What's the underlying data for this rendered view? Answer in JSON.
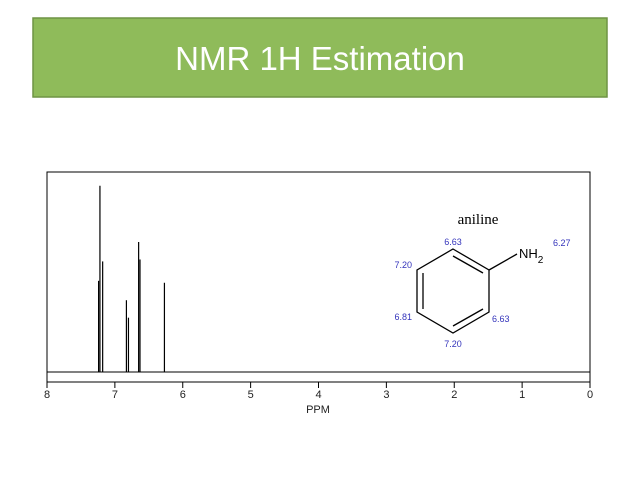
{
  "title": "NMR 1H Estimation",
  "chart_data": {
    "type": "spectrum",
    "xlabel": "PPM",
    "x": [
      7.24,
      7.22,
      7.18,
      6.83,
      6.8,
      6.65,
      6.63,
      6.27
    ],
    "values": [
      47,
      96,
      57,
      37,
      28,
      67,
      58,
      46
    ],
    "xlim": [
      8,
      0
    ],
    "xticks": [
      8,
      7,
      6,
      5,
      4,
      3,
      2,
      1,
      0
    ],
    "ylim": [
      0,
      100
    ],
    "color": "#000000"
  },
  "molecule": {
    "name": "aniline",
    "group": "NH",
    "subscript": "2",
    "shifts": [
      "6.63",
      "7.20",
      "6.81",
      "7.20",
      "6.63",
      "6.27"
    ]
  }
}
